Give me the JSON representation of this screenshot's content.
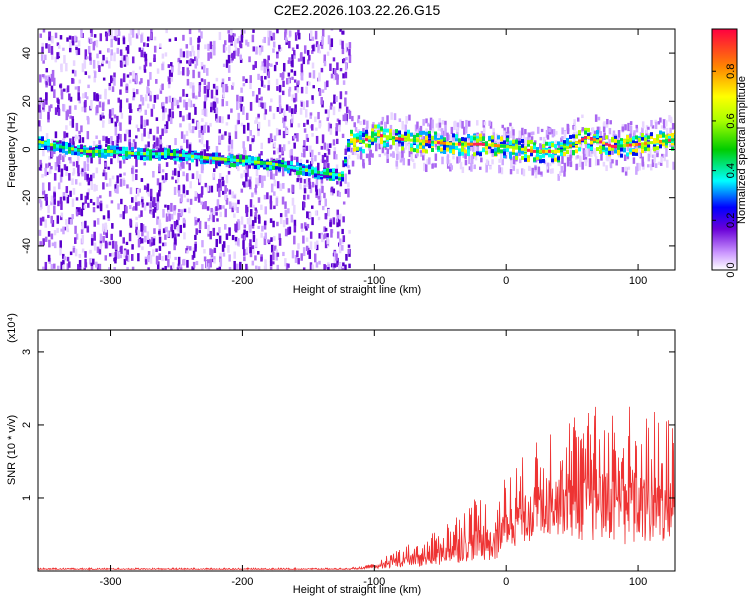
{
  "title": "C2E2.2026.103.22.26.G15",
  "chart_data": [
    {
      "type": "heatmap",
      "name": "spectrogram",
      "xlabel": "Height of straight line (km)",
      "ylabel": "Frequency (Hz)",
      "xlim": [
        -355,
        128
      ],
      "ylim": [
        -50,
        50
      ],
      "xticks": [
        -300,
        -200,
        -100,
        0,
        100
      ],
      "xtick_labels": [
        "-300",
        "-200",
        "-100",
        "0",
        "100"
      ],
      "yticks": [
        40,
        20,
        0,
        -20,
        -40
      ],
      "ytick_labels": [
        "40",
        "20",
        "0",
        "-20",
        "-40"
      ],
      "colorbar": {
        "label": "Normalized spectral amplitude",
        "range": [
          0,
          0.97
        ],
        "ticks": [
          0.0,
          0.2,
          0.4,
          0.6,
          0.8
        ],
        "tick_labels": [
          "0.0",
          "0.2",
          "0.4",
          "0.6",
          "0.8"
        ]
      },
      "ridge": {
        "x": [
          -355,
          -340,
          -320,
          -300,
          -280,
          -260,
          -240,
          -220,
          -200,
          -180,
          -160,
          -140,
          -125,
          -120,
          -110,
          -100,
          -80,
          -60,
          -40,
          -20,
          0,
          20,
          40,
          60,
          80,
          100,
          128
        ],
        "freq": [
          3,
          1,
          -1,
          -1,
          -2,
          -2,
          -3,
          -4,
          -5,
          -6,
          -8,
          -10,
          -11,
          4,
          3,
          6,
          4,
          3,
          2,
          2,
          1,
          -1,
          -1,
          5,
          1,
          2,
          4
        ]
      }
    },
    {
      "type": "line",
      "name": "snr",
      "xlabel": "Height of straight line (km)",
      "ylabel": "SNR (10 * v/v)",
      "exponent_label": "(x10⁴)",
      "xlim": [
        -355,
        128
      ],
      "ylim": [
        0,
        3.3
      ],
      "xticks": [
        -300,
        -200,
        -100,
        0,
        100
      ],
      "xtick_labels": [
        "-300",
        "-200",
        "-100",
        "0",
        "100"
      ],
      "yticks": [
        1,
        2,
        3
      ],
      "ytick_labels": [
        "1",
        "2",
        "3"
      ],
      "color": "#ee3333",
      "envelope": {
        "x": [
          -355,
          -120,
          -100,
          -80,
          -60,
          -40,
          -20,
          -10,
          0,
          20,
          40,
          60,
          80,
          100,
          128
        ],
        "upper": [
          0.04,
          0.04,
          0.1,
          0.35,
          0.45,
          0.8,
          1.1,
          0.9,
          1.4,
          1.7,
          2.3,
          2.2,
          2.4,
          2.3,
          2.1
        ],
        "lower": [
          0.02,
          0.02,
          0.03,
          0.05,
          0.05,
          0.1,
          0.15,
          0.1,
          0.3,
          0.4,
          0.5,
          0.4,
          0.4,
          0.3,
          0.4
        ]
      }
    }
  ]
}
